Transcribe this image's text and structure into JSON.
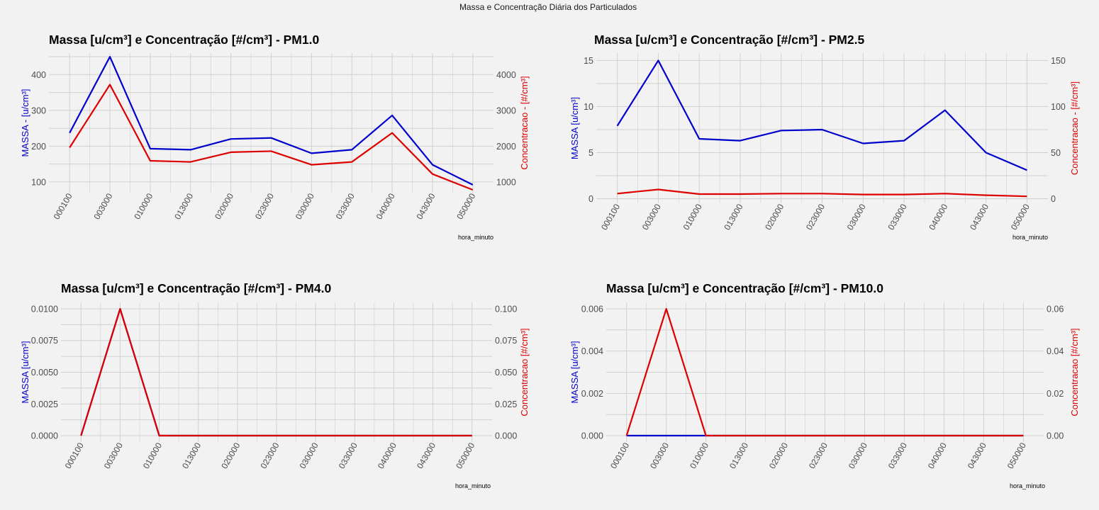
{
  "figure": {
    "title": "Massa e Concentração Diária dos Particulados"
  },
  "colors": {
    "massa": "#0000cc",
    "concentracao": "#dd0000",
    "background": "#f2f2f2",
    "grid": "#d0d0d0"
  },
  "chart_data": [
    {
      "type": "line",
      "title": "Massa [u/cm³] e Concentração [#/cm³] - PM1.0",
      "xlabel": "hora_minuto",
      "ylabel_left": "MASSA - [u/cm³]",
      "ylabel_right": "Concentracao - [#/cm³]",
      "categories": [
        "000100",
        "003000",
        "010000",
        "013000",
        "020000",
        "023000",
        "030000",
        "033000",
        "040000",
        "043000",
        "050000"
      ],
      "ylim_left": [
        70,
        460
      ],
      "ylim_right": [
        700,
        4600
      ],
      "yticks_left": [
        "100",
        "200",
        "300",
        "400"
      ],
      "yticks_right": [
        "1000",
        "2000",
        "3000",
        "4000"
      ],
      "series": [
        {
          "axis": "left",
          "color": "#0000cc",
          "values": [
            237,
            450,
            193,
            190,
            220,
            223,
            180,
            190,
            286,
            148,
            92
          ]
        },
        {
          "axis": "right",
          "color": "#dd0000",
          "values": [
            1960,
            3720,
            1590,
            1560,
            1830,
            1860,
            1480,
            1560,
            2370,
            1220,
            780
          ]
        }
      ]
    },
    {
      "type": "line",
      "title": "Massa [u/cm³] e Concentração [#/cm³] - PM2.5",
      "xlabel": "hora_minuto",
      "ylabel_left": "MASSA [u/cm³]",
      "ylabel_right": "Concentracao - [#/cm³]",
      "categories": [
        "000100",
        "003000",
        "010000",
        "013000",
        "020000",
        "023000",
        "030000",
        "033000",
        "040000",
        "043000",
        "050000"
      ],
      "ylim_left": [
        -0.5,
        15.8
      ],
      "ylim_right": [
        -5,
        158
      ],
      "yticks_left": [
        "0",
        "5",
        "10",
        "15"
      ],
      "yticks_right": [
        "0",
        "50",
        "100",
        "150"
      ],
      "series": [
        {
          "axis": "left",
          "color": "#0000cc",
          "values": [
            7.9,
            15.0,
            6.5,
            6.3,
            7.4,
            7.5,
            6.0,
            6.3,
            9.6,
            5.0,
            3.1
          ]
        },
        {
          "axis": "right",
          "color": "#dd0000",
          "values": [
            5.5,
            10.0,
            5.0,
            5.0,
            5.5,
            5.5,
            4.5,
            4.5,
            5.5,
            3.8,
            2.5
          ]
        }
      ]
    },
    {
      "type": "line",
      "title": "Massa [u/cm³] e Concentração [#/cm³] - PM4.0",
      "xlabel": "hora_minuto",
      "ylabel_left": "MASSA [u/cm³]",
      "ylabel_right": "Concentracao [#/cm³]",
      "categories": [
        "000100",
        "003000",
        "010000",
        "013000",
        "020000",
        "023000",
        "030000",
        "033000",
        "040000",
        "043000",
        "050000"
      ],
      "ylim_left": [
        -0.0005,
        0.0105
      ],
      "ylim_right": [
        -0.005,
        0.105
      ],
      "yticks_left": [
        "0.0000",
        "0.0025",
        "0.0050",
        "0.0075",
        "0.0100"
      ],
      "yticks_right": [
        "0.000",
        "0.025",
        "0.050",
        "0.075",
        "0.100"
      ],
      "series": [
        {
          "axis": "left",
          "color": "#0000cc",
          "values": [
            0,
            0.01,
            0,
            0,
            0,
            0,
            0,
            0,
            0,
            0,
            0
          ]
        },
        {
          "axis": "right",
          "color": "#dd0000",
          "values": [
            0,
            0.1,
            0,
            0,
            0,
            0,
            0,
            0,
            0,
            0,
            0
          ]
        }
      ]
    },
    {
      "type": "line",
      "title": "Massa [u/cm³] e Concentração [#/cm³] - PM10.0",
      "xlabel": "hora_minuto",
      "ylabel_left": "MASSA [u/cm³]",
      "ylabel_right": "Concentracao [#/cm³]",
      "categories": [
        "000100",
        "003000",
        "010000",
        "013000",
        "020000",
        "023000",
        "030000",
        "033000",
        "040000",
        "043000",
        "050000"
      ],
      "ylim_left": [
        -0.0003,
        0.0063
      ],
      "ylim_right": [
        -0.003,
        0.063
      ],
      "yticks_left": [
        "0.000",
        "0.002",
        "0.004",
        "0.006"
      ],
      "yticks_right": [
        "0.00",
        "0.02",
        "0.04",
        "0.06"
      ],
      "series": [
        {
          "axis": "left",
          "color": "#0000cc",
          "values": [
            0,
            0,
            0,
            0,
            0,
            0,
            0,
            0,
            0,
            0,
            0
          ]
        },
        {
          "axis": "right",
          "color": "#dd0000",
          "values": [
            0,
            0.06,
            0,
            0,
            0,
            0,
            0,
            0,
            0,
            0,
            0
          ]
        }
      ]
    }
  ]
}
